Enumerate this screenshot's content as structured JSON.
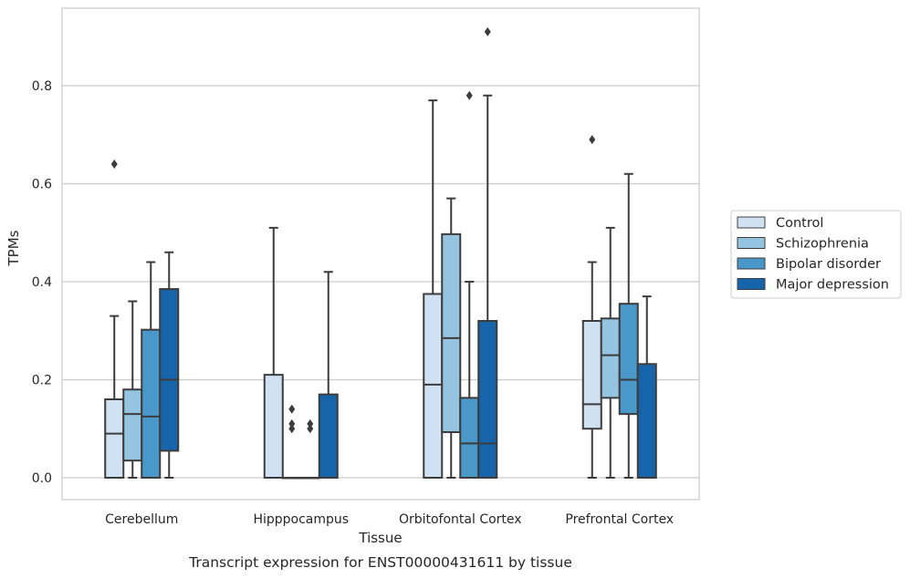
{
  "caption": "Transcript expression for ENST00000431611 by tissue",
  "chart_data": {
    "type": "box",
    "xlabel": "Tissue",
    "ylabel": "TPMs",
    "ylim": [
      -0.045,
      0.96
    ],
    "yticks": [
      "0.0",
      "0.2",
      "0.4",
      "0.6",
      "0.8"
    ],
    "ytick_values": [
      0,
      0.2,
      0.4,
      0.6,
      0.8
    ],
    "grid": "horizontal",
    "legend_position": "right",
    "categories": [
      "Cerebellum",
      "Hipppocampus",
      "Orbitofontal Cortex",
      "Prefrontal Cortex"
    ],
    "series": [
      {
        "name": "Control",
        "color": "#d0e1f2",
        "boxes": [
          {
            "q1": 0,
            "median": 0.09,
            "q3": 0.16,
            "low": 0,
            "high": 0.33,
            "outliers": [
              0.64
            ]
          },
          {
            "q1": 0,
            "median": 0,
            "q3": 0.21,
            "low": 0,
            "high": 0.51,
            "outliers": []
          },
          {
            "q1": 0,
            "median": 0.19,
            "q3": 0.375,
            "low": 0,
            "high": 0.77,
            "outliers": []
          },
          {
            "q1": 0.1,
            "median": 0.15,
            "q3": 0.32,
            "low": 0,
            "high": 0.44,
            "outliers": [
              0.69
            ]
          }
        ]
      },
      {
        "name": "Schizophrenia",
        "color": "#94c4df",
        "boxes": [
          {
            "q1": 0.035,
            "median": 0.13,
            "q3": 0.18,
            "low": 0,
            "high": 0.36,
            "outliers": []
          },
          {
            "q1": 0,
            "median": 0,
            "q3": 0,
            "low": 0,
            "high": 0,
            "outliers": [
              0.1,
              0.11,
              0.14
            ]
          },
          {
            "q1": 0.093,
            "median": 0.285,
            "q3": 0.497,
            "low": 0,
            "high": 0.57,
            "outliers": []
          },
          {
            "q1": 0.163,
            "median": 0.25,
            "q3": 0.325,
            "low": 0,
            "high": 0.51,
            "outliers": []
          }
        ]
      },
      {
        "name": "Bipolar disorder",
        "color": "#4a98c9",
        "boxes": [
          {
            "q1": 0,
            "median": 0.125,
            "q3": 0.302,
            "low": 0,
            "high": 0.44,
            "outliers": []
          },
          {
            "q1": 0,
            "median": 0,
            "q3": 0,
            "low": 0,
            "high": 0,
            "outliers": [
              0.1,
              0.11
            ]
          },
          {
            "q1": 0,
            "median": 0.07,
            "q3": 0.163,
            "low": 0,
            "high": 0.4,
            "outliers": [
              0.78
            ]
          },
          {
            "q1": 0.13,
            "median": 0.2,
            "q3": 0.355,
            "low": 0,
            "high": 0.62,
            "outliers": []
          }
        ]
      },
      {
        "name": "Major depression",
        "color": "#1764ab",
        "boxes": [
          {
            "q1": 0.055,
            "median": 0.2,
            "q3": 0.385,
            "low": 0,
            "high": 0.46,
            "outliers": []
          },
          {
            "q1": 0,
            "median": 0,
            "q3": 0.17,
            "low": 0,
            "high": 0.42,
            "outliers": []
          },
          {
            "q1": 0,
            "median": 0.07,
            "q3": 0.32,
            "low": 0,
            "high": 0.78,
            "outliers": [
              0.91
            ]
          },
          {
            "q1": 0,
            "median": 0,
            "q3": 0.232,
            "low": 0,
            "high": 0.37,
            "outliers": []
          }
        ]
      }
    ]
  }
}
